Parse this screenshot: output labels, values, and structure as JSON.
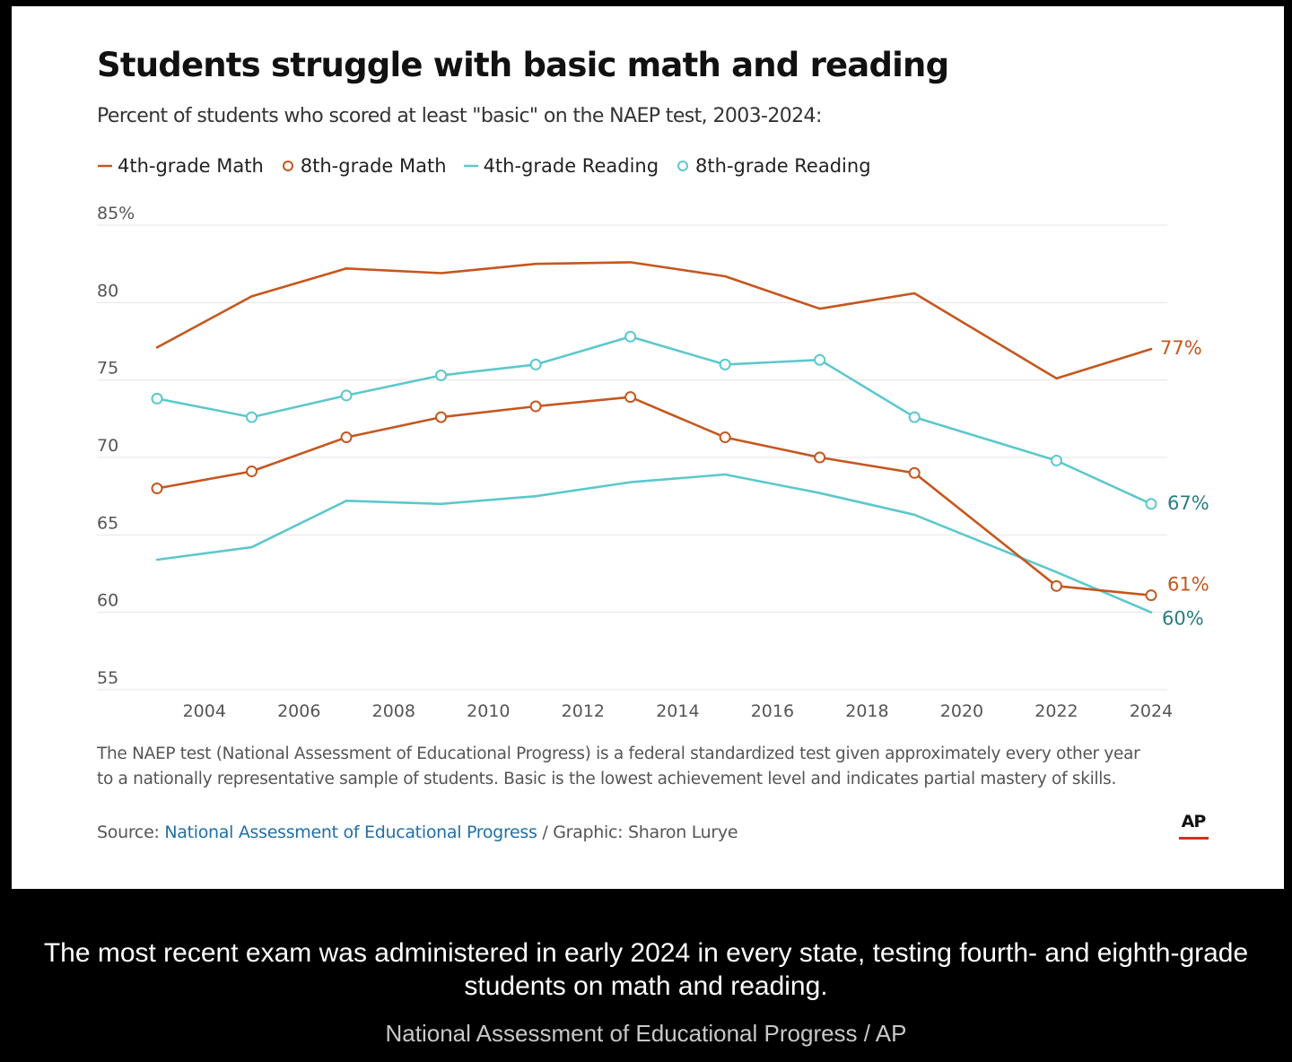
{
  "chart_data": {
    "type": "line",
    "title": "Students struggle with basic math and reading",
    "subtitle": "Percent of students who scored at least \"basic\" on the NAEP test, 2003-2024:",
    "xlabel": "",
    "ylabel": "",
    "x_ticks": [
      "2004",
      "2006",
      "2008",
      "2010",
      "2012",
      "2014",
      "2016",
      "2018",
      "2020",
      "2022",
      "2024"
    ],
    "y_ticks": [
      "85%",
      "80",
      "75",
      "70",
      "65",
      "60",
      "55"
    ],
    "xlim": [
      2003,
      2024
    ],
    "ylim": [
      55,
      85
    ],
    "grid": true,
    "legend_position": "top-left",
    "series": [
      {
        "name": "4th-grade Math",
        "color": "#c4571f",
        "marker": "none",
        "x": [
          2003,
          2005,
          2007,
          2009,
          2011,
          2013,
          2015,
          2017,
          2019,
          2022,
          2024
        ],
        "y": [
          77.1,
          80.4,
          82.2,
          81.9,
          82.5,
          82.6,
          81.7,
          79.6,
          80.6,
          75.1,
          77.0
        ],
        "end_label": "77%"
      },
      {
        "name": "8th-grade Math",
        "color": "#c4571f",
        "marker": "circle",
        "x": [
          2003,
          2005,
          2007,
          2009,
          2011,
          2013,
          2015,
          2017,
          2019,
          2022,
          2024
        ],
        "y": [
          68.0,
          69.1,
          71.3,
          72.6,
          73.3,
          73.9,
          71.3,
          70.0,
          69.0,
          61.7,
          61.1
        ],
        "end_label": "61%"
      },
      {
        "name": "4th-grade Reading",
        "color": "#5cc8cc",
        "marker": "none",
        "x": [
          2003,
          2005,
          2007,
          2009,
          2011,
          2013,
          2015,
          2017,
          2019,
          2022,
          2024
        ],
        "y": [
          63.4,
          64.2,
          67.2,
          67.0,
          67.5,
          68.4,
          68.9,
          67.7,
          66.3,
          62.6,
          60.0
        ],
        "end_label": "60%"
      },
      {
        "name": "8th-grade Reading",
        "color": "#5cc8cc",
        "marker": "circle",
        "x": [
          2003,
          2005,
          2007,
          2009,
          2011,
          2013,
          2015,
          2017,
          2019,
          2022,
          2024
        ],
        "y": [
          73.8,
          72.6,
          74.0,
          75.3,
          76.0,
          77.8,
          76.0,
          76.3,
          72.6,
          69.8,
          67.0
        ],
        "end_label": "67%"
      }
    ],
    "label_colors": {
      "math": "#c4571f",
      "reading": "#2a7d7f"
    }
  },
  "note": "The NAEP test (National Assessment of Educational Progress) is a federal standardized test given approximately every other year to a nationally representative sample of students. Basic is the lowest achievement level and indicates partial mastery of skills.",
  "source": {
    "prefix": "Source: ",
    "link": "National Assessment of Educational Progress",
    "suffix": " / Graphic: Sharon Lurye"
  },
  "logo": "AP",
  "caption": "The most recent exam was administered in early 2024 in every state, testing fourth- and eighth-grade students on math and reading.",
  "credit": "National Assessment of Educational Progress / AP"
}
